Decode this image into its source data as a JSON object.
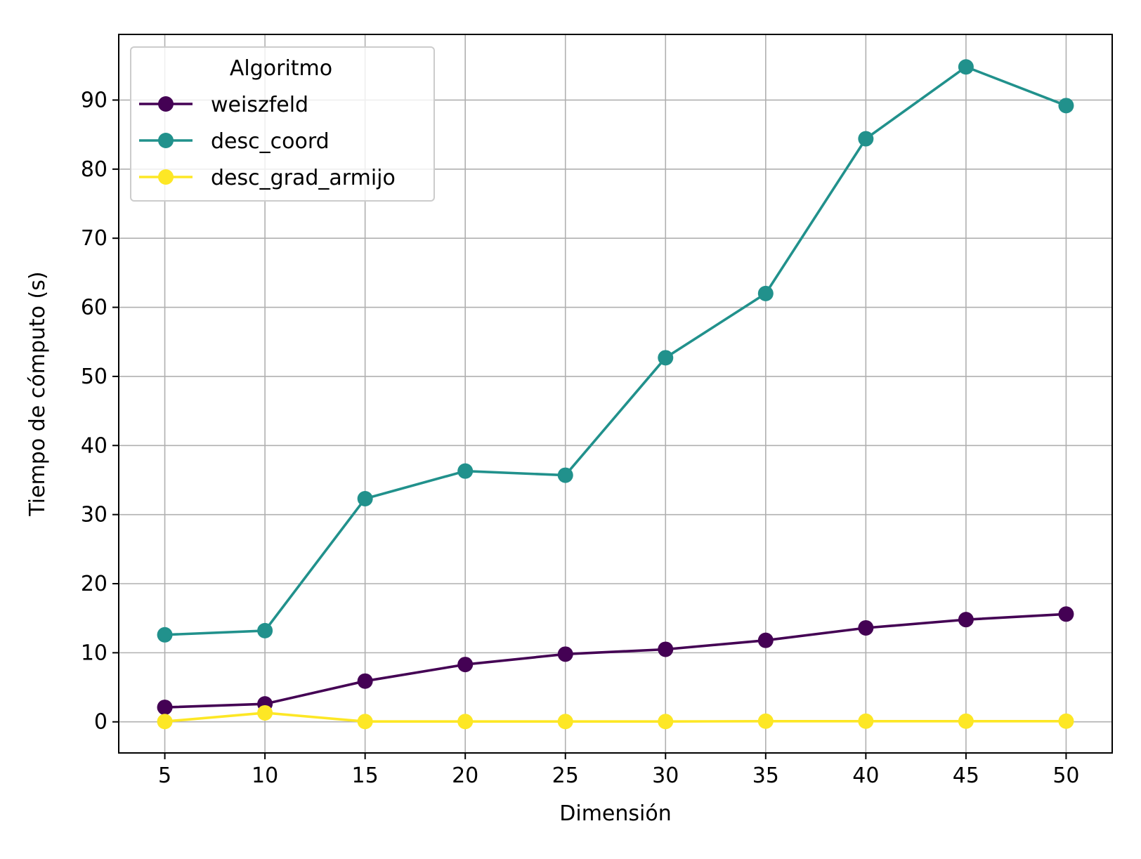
{
  "chart_data": {
    "type": "line",
    "title": "",
    "xlabel": "Dimensión",
    "ylabel": "Tiempo de cómputo (s)",
    "x": [
      5,
      10,
      15,
      20,
      25,
      30,
      35,
      40,
      45,
      50
    ],
    "xlim": [
      2.7,
      52.3
    ],
    "ylim": [
      -4.5,
      99.5
    ],
    "xticks": [
      5,
      10,
      15,
      20,
      25,
      30,
      35,
      40,
      45,
      50
    ],
    "yticks": [
      0,
      10,
      20,
      30,
      40,
      50,
      60,
      70,
      80,
      90
    ],
    "grid": true,
    "legend": {
      "title": "Algoritmo",
      "placement": "top-left"
    },
    "series": [
      {
        "name": "weiszfeld",
        "color": "#440154",
        "values": [
          2.1,
          2.6,
          5.9,
          8.3,
          9.8,
          10.5,
          11.8,
          13.6,
          14.8,
          15.6
        ]
      },
      {
        "name": "desc_coord",
        "color": "#21918c",
        "values": [
          12.6,
          13.2,
          32.3,
          36.3,
          35.7,
          52.7,
          62.0,
          84.4,
          94.8,
          89.2
        ]
      },
      {
        "name": "desc_grad_armijo",
        "color": "#fde725",
        "values": [
          0.05,
          1.3,
          0.05,
          0.05,
          0.05,
          0.05,
          0.1,
          0.1,
          0.1,
          0.1
        ]
      }
    ]
  }
}
